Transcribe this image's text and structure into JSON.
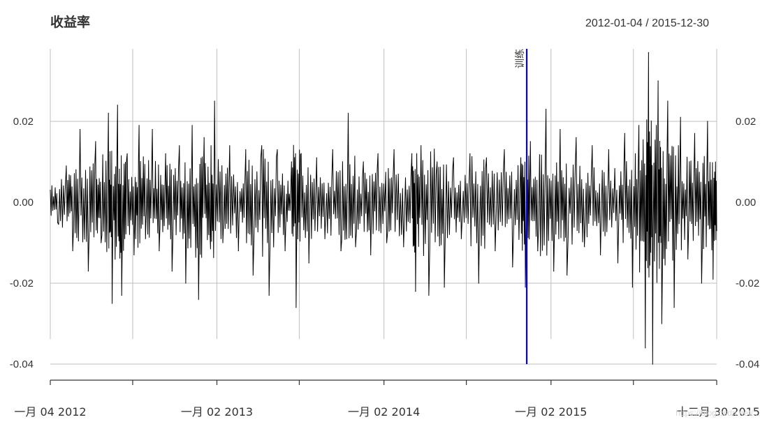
{
  "chart_data": {
    "type": "line",
    "title": "收益率",
    "date_range_label": "2012-01-04 / 2015-12-30",
    "x_start": "2012-01-04",
    "x_end": "2015-12-30",
    "ylim": [
      -0.04,
      0.037
    ],
    "y_ticks": [
      0.02,
      0.0,
      -0.02,
      -0.04
    ],
    "y_tick_labels": [
      "0.02",
      "0.00",
      "-0.02",
      "-0.04"
    ],
    "grid": true,
    "x_ticks": [
      {
        "date": "2012-01-04",
        "label": "一月 04 2012"
      },
      {
        "date": "2012-07-02",
        "label": ""
      },
      {
        "date": "2013-01-02",
        "label": "一月 02 2013"
      },
      {
        "date": "2013-07-01",
        "label": ""
      },
      {
        "date": "2014-01-02",
        "label": "一月 02 2014"
      },
      {
        "date": "2014-07-01",
        "label": ""
      },
      {
        "date": "2015-01-02",
        "label": "一月 02 2015"
      },
      {
        "date": "2015-07-01",
        "label": ""
      },
      {
        "date": "2015-12-30",
        "label": "十二月 30 2015"
      }
    ],
    "event_line": {
      "date": "2014-11-10",
      "label": "训练",
      "color": "#0000ff"
    },
    "series": [
      {
        "color": "#000000",
        "points": [
          [
            "2012-01-04",
            0.003
          ],
          [
            "2012-01-20",
            -0.005
          ],
          [
            "2012-02-08",
            0.009
          ],
          [
            "2012-02-22",
            -0.012
          ],
          [
            "2012-03-09",
            0.018
          ],
          [
            "2012-03-27",
            -0.017
          ],
          [
            "2012-04-12",
            0.015
          ],
          [
            "2012-04-24",
            -0.01
          ],
          [
            "2012-05-10",
            0.022
          ],
          [
            "2012-05-18",
            -0.025
          ],
          [
            "2012-05-30",
            0.024
          ],
          [
            "2012-06-08",
            -0.023
          ],
          [
            "2012-06-20",
            0.012
          ],
          [
            "2012-07-05",
            -0.013
          ],
          [
            "2012-07-16",
            0.019
          ],
          [
            "2012-07-30",
            -0.009
          ],
          [
            "2012-08-14",
            0.018
          ],
          [
            "2012-08-29",
            -0.012
          ],
          [
            "2012-09-12",
            0.012
          ],
          [
            "2012-09-26",
            -0.017
          ],
          [
            "2012-10-12",
            0.014
          ],
          [
            "2012-10-26",
            -0.02
          ],
          [
            "2012-11-09",
            0.019
          ],
          [
            "2012-11-23",
            -0.024
          ],
          [
            "2012-12-05",
            0.016
          ],
          [
            "2012-12-18",
            -0.008
          ],
          [
            "2012-12-28",
            0.025
          ],
          [
            "2013-01-15",
            -0.01
          ],
          [
            "2013-01-30",
            0.014
          ],
          [
            "2013-02-18",
            -0.012
          ],
          [
            "2013-03-06",
            0.013
          ],
          [
            "2013-03-22",
            -0.018
          ],
          [
            "2013-04-10",
            0.014
          ],
          [
            "2013-04-26",
            -0.023
          ],
          [
            "2013-05-14",
            0.013
          ],
          [
            "2013-05-31",
            -0.012
          ],
          [
            "2013-06-14",
            0.01
          ],
          [
            "2013-06-24",
            -0.026
          ],
          [
            "2013-07-05",
            0.012
          ],
          [
            "2013-07-22",
            -0.015
          ],
          [
            "2013-08-08",
            0.011
          ],
          [
            "2013-08-26",
            -0.009
          ],
          [
            "2013-09-12",
            0.013
          ],
          [
            "2013-09-30",
            -0.012
          ],
          [
            "2013-10-16",
            0.022
          ],
          [
            "2013-11-01",
            -0.011
          ],
          [
            "2013-11-18",
            0.01
          ],
          [
            "2013-12-04",
            -0.013
          ],
          [
            "2013-12-20",
            0.012
          ],
          [
            "2014-01-08",
            -0.01
          ],
          [
            "2014-01-24",
            0.013
          ],
          [
            "2014-02-14",
            -0.011
          ],
          [
            "2014-03-04",
            0.012
          ],
          [
            "2014-03-12",
            -0.022
          ],
          [
            "2014-03-24",
            0.014
          ],
          [
            "2014-04-10",
            -0.023
          ],
          [
            "2014-04-28",
            0.01
          ],
          [
            "2014-05-14",
            -0.021
          ],
          [
            "2014-06-03",
            0.011
          ],
          [
            "2014-06-20",
            -0.009
          ],
          [
            "2014-07-09",
            0.012
          ],
          [
            "2014-07-28",
            -0.02
          ],
          [
            "2014-08-14",
            0.011
          ],
          [
            "2014-09-02",
            -0.012
          ],
          [
            "2014-09-22",
            0.013
          ],
          [
            "2014-10-10",
            -0.016
          ],
          [
            "2014-10-28",
            0.011
          ],
          [
            "2014-11-07",
            -0.021
          ],
          [
            "2014-11-18",
            0.015
          ],
          [
            "2014-12-04",
            -0.012
          ],
          [
            "2014-12-22",
            0.023
          ],
          [
            "2015-01-08",
            -0.017
          ],
          [
            "2015-01-22",
            0.018
          ],
          [
            "2015-02-06",
            -0.018
          ],
          [
            "2015-02-26",
            0.016
          ],
          [
            "2015-03-16",
            -0.011
          ],
          [
            "2015-04-02",
            0.014
          ],
          [
            "2015-04-20",
            -0.013
          ],
          [
            "2015-05-08",
            0.013
          ],
          [
            "2015-05-28",
            -0.015
          ],
          [
            "2015-06-12",
            0.017
          ],
          [
            "2015-06-29",
            -0.021
          ],
          [
            "2015-07-13",
            0.019
          ],
          [
            "2015-07-27",
            -0.036
          ],
          [
            "2015-08-03",
            0.037
          ],
          [
            "2015-08-12",
            -0.04
          ],
          [
            "2015-08-24",
            0.03
          ],
          [
            "2015-09-01",
            -0.03
          ],
          [
            "2015-09-14",
            0.025
          ],
          [
            "2015-09-28",
            -0.026
          ],
          [
            "2015-10-12",
            0.021
          ],
          [
            "2015-10-28",
            -0.014
          ],
          [
            "2015-11-12",
            0.017
          ],
          [
            "2015-11-27",
            -0.02
          ],
          [
            "2015-12-10",
            0.02
          ],
          [
            "2015-12-22",
            -0.019
          ],
          [
            "2015-12-30",
            -0.007
          ]
        ]
      }
    ]
  },
  "watermark": "https://blog.csdn.net/..."
}
